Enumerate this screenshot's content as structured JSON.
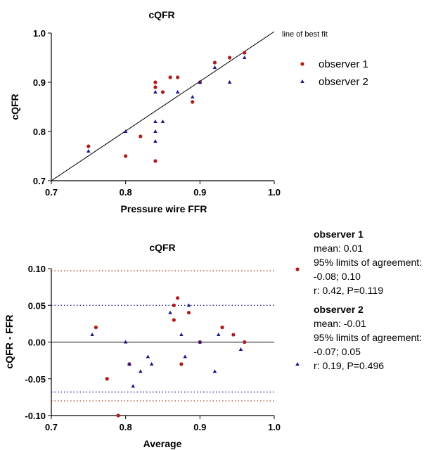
{
  "colors": {
    "observer_1": "#b01c1c",
    "observer_2": "#1a1a8c",
    "axis": "#000000"
  },
  "chart_data": [
    {
      "type": "scatter",
      "title": "cQFR",
      "xlabel": "Pressure wire FFR",
      "ylabel": "cQFR",
      "xlim": [
        0.7,
        1.0
      ],
      "ylim": [
        0.7,
        1.0
      ],
      "xticks": [
        "0.7",
        "0.8",
        "0.9",
        "1.0"
      ],
      "yticks": [
        "0.7",
        "0.8",
        "0.9",
        "1.0"
      ],
      "reference_line": {
        "label": "line of best fit",
        "from": [
          0.7,
          0.7
        ],
        "to": [
          1.0,
          1.0
        ]
      },
      "legend_position": "right",
      "series": [
        {
          "name": "observer 1",
          "marker": "circle",
          "points": [
            [
              0.75,
              0.77
            ],
            [
              0.8,
              0.75
            ],
            [
              0.82,
              0.79
            ],
            [
              0.84,
              0.9
            ],
            [
              0.84,
              0.89
            ],
            [
              0.84,
              0.74
            ],
            [
              0.85,
              0.88
            ],
            [
              0.86,
              0.91
            ],
            [
              0.87,
              0.91
            ],
            [
              0.89,
              0.86
            ],
            [
              0.9,
              0.9
            ],
            [
              0.92,
              0.94
            ],
            [
              0.94,
              0.95
            ],
            [
              0.96,
              0.96
            ]
          ]
        },
        {
          "name": "observer 2",
          "marker": "triangle",
          "points": [
            [
              0.75,
              0.76
            ],
            [
              0.8,
              0.8
            ],
            [
              0.84,
              0.88
            ],
            [
              0.84,
              0.82
            ],
            [
              0.84,
              0.8
            ],
            [
              0.84,
              0.78
            ],
            [
              0.85,
              0.82
            ],
            [
              0.87,
              0.88
            ],
            [
              0.89,
              0.87
            ],
            [
              0.9,
              0.9
            ],
            [
              0.92,
              0.93
            ],
            [
              0.94,
              0.9
            ],
            [
              0.96,
              0.95
            ]
          ]
        }
      ]
    },
    {
      "type": "scatter",
      "title": "cQFR",
      "xlabel": "Average",
      "ylabel": "cQFR - FFR",
      "xlim": [
        0.7,
        1.0
      ],
      "ylim": [
        -0.1,
        0.1
      ],
      "xticks": [
        "0.7",
        "0.8",
        "0.9",
        "1.0"
      ],
      "yticks": [
        "0.10",
        "0.05",
        "0.00",
        "-0.05",
        "-0.10"
      ],
      "zero_line": 0.0,
      "limit_lines": [
        {
          "series": "observer 1",
          "values": [
            -0.08,
            0.097
          ]
        },
        {
          "series": "observer 2",
          "values": [
            -0.068,
            0.05
          ]
        }
      ],
      "series": [
        {
          "name": "observer 1",
          "marker": "circle",
          "points": [
            [
              0.76,
              0.02
            ],
            [
              0.775,
              -0.05
            ],
            [
              0.79,
              -0.1
            ],
            [
              0.805,
              -0.03
            ],
            [
              0.865,
              0.03
            ],
            [
              0.865,
              0.05
            ],
            [
              0.87,
              0.06
            ],
            [
              0.875,
              -0.03
            ],
            [
              0.885,
              0.04
            ],
            [
              0.9,
              0.0
            ],
            [
              0.93,
              0.02
            ],
            [
              0.945,
              0.01
            ],
            [
              0.96,
              0.0
            ]
          ]
        },
        {
          "name": "observer 2",
          "marker": "triangle",
          "points": [
            [
              0.755,
              0.01
            ],
            [
              0.8,
              0.0
            ],
            [
              0.805,
              -0.03
            ],
            [
              0.81,
              -0.06
            ],
            [
              0.82,
              -0.04
            ],
            [
              0.83,
              -0.02
            ],
            [
              0.835,
              -0.03
            ],
            [
              0.86,
              0.04
            ],
            [
              0.875,
              0.01
            ],
            [
              0.88,
              -0.02
            ],
            [
              0.885,
              0.05
            ],
            [
              0.9,
              0.0
            ],
            [
              0.92,
              -0.04
            ],
            [
              0.925,
              0.01
            ],
            [
              0.955,
              -0.01
            ]
          ]
        }
      ]
    }
  ],
  "stats_legend": [
    {
      "heading": "observer 1",
      "lines": [
        "mean: 0.01",
        "95% limits of agreement:",
        "-0.08; 0.10",
        "r: 0.42, P=0.119"
      ]
    },
    {
      "heading": "observer 2",
      "lines": [
        "mean: -0.01",
        "95% limits of agreement:",
        "-0.07; 0.05",
        "r: 0.19, P=0.496"
      ]
    }
  ]
}
